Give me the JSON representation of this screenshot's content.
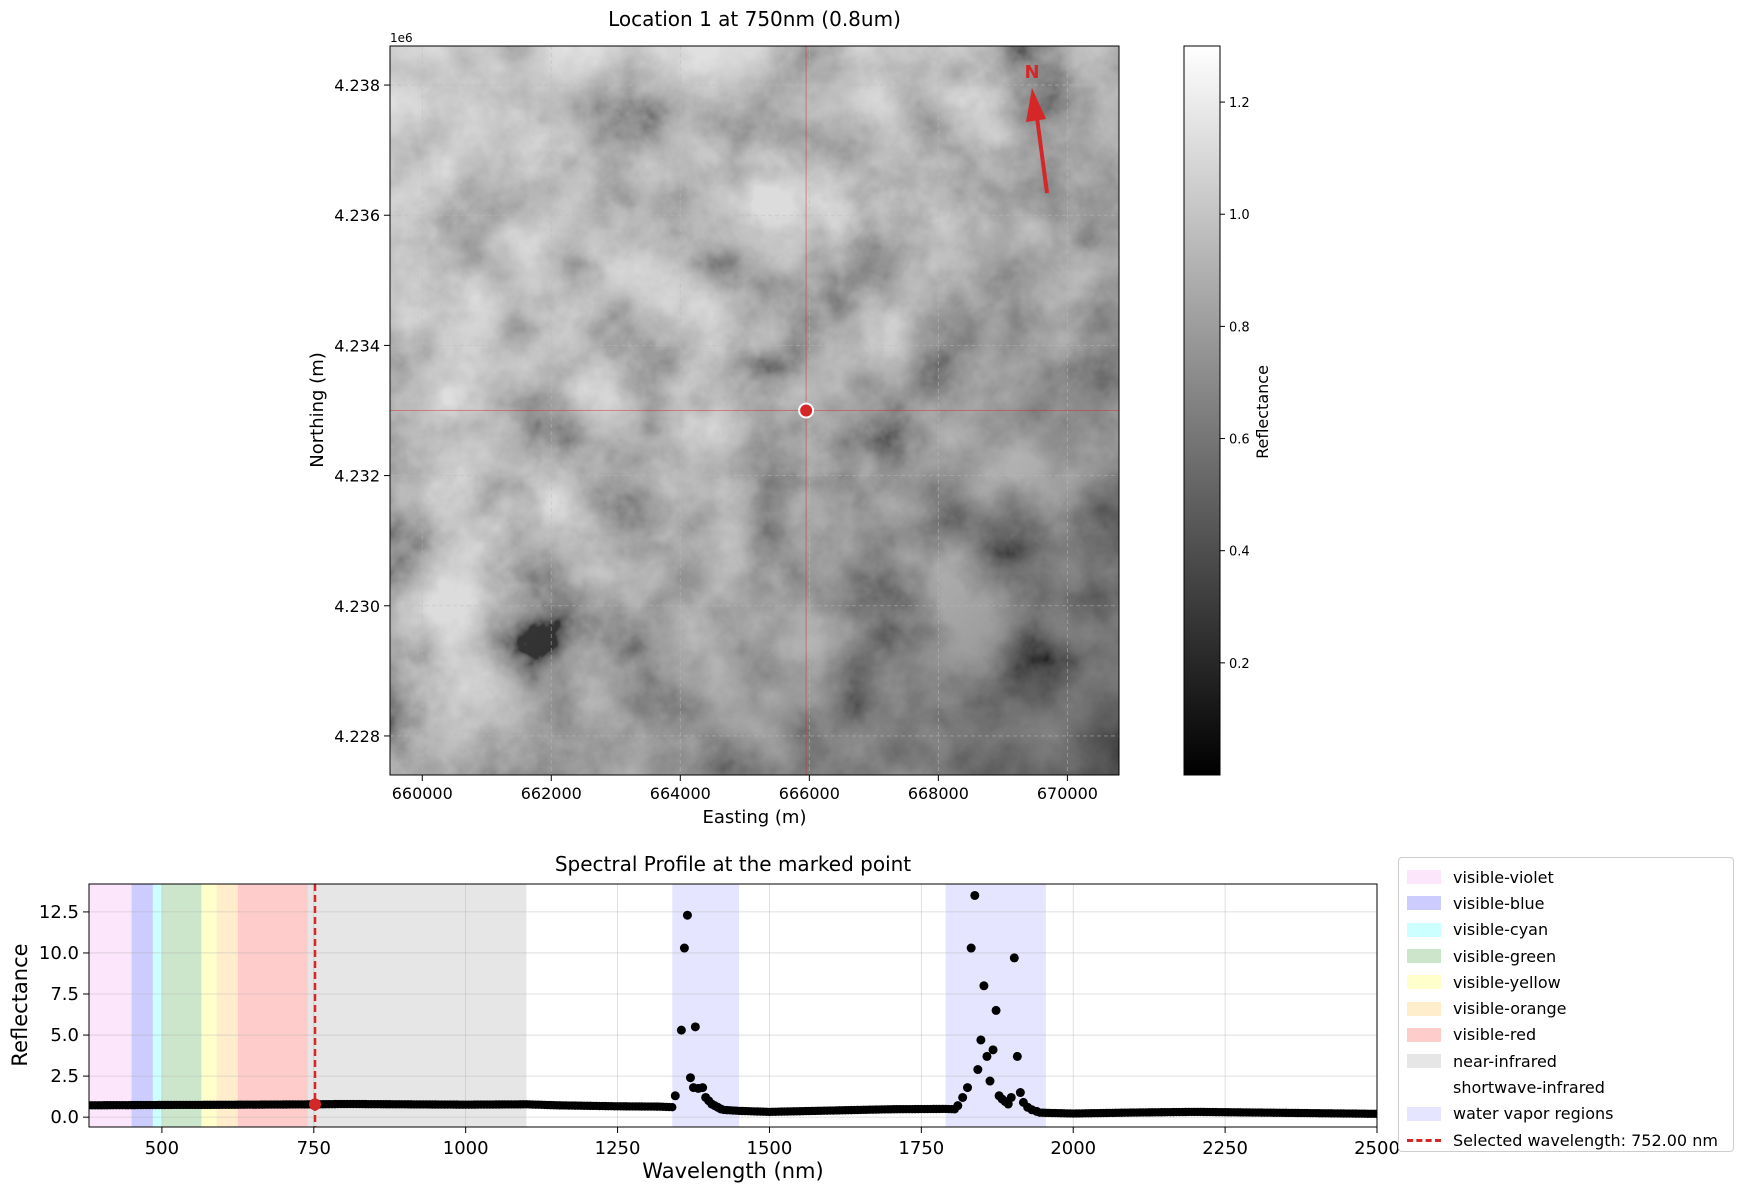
{
  "chart_data": [
    {
      "type": "heatmap",
      "title": "Location 1 at 750nm (0.8um)",
      "xlabel": "Easting (m)",
      "ylabel": "Northing (m)",
      "y_offset_label": "1e6",
      "xlim": [
        659500,
        670800
      ],
      "ylim": [
        4227400,
        4238600
      ],
      "xticks": [
        660000,
        662000,
        664000,
        666000,
        668000,
        670000
      ],
      "xtick_labels": [
        "660000",
        "662000",
        "664000",
        "666000",
        "668000",
        "670000"
      ],
      "yticks": [
        4228000,
        4230000,
        4232000,
        4234000,
        4236000,
        4238000
      ],
      "ytick_labels": [
        "4.228",
        "4.230",
        "4.232",
        "4.234",
        "4.236",
        "4.238"
      ],
      "grid": true,
      "colormap": "gray",
      "marked_point": {
        "x": 665950,
        "y": 4233000,
        "color": "#d62728"
      },
      "north_arrow": {
        "label": "N",
        "color": "#d62728"
      },
      "colorbar": {
        "label": "Reflectance",
        "range": [
          0.0,
          1.3
        ],
        "ticks": [
          0.2,
          0.4,
          0.6,
          0.8,
          1.0,
          1.2
        ],
        "tick_labels": [
          "0.2",
          "0.4",
          "0.6",
          "0.8",
          "1.0",
          "1.2"
        ]
      }
    },
    {
      "type": "scatter",
      "title": "Spectral Profile at the marked point",
      "xlabel": "Wavelength (nm)",
      "ylabel": "Reflectance",
      "xlim": [
        380,
        2500
      ],
      "ylim": [
        -0.6,
        14.2
      ],
      "xticks": [
        500,
        750,
        1000,
        1250,
        1500,
        1750,
        2000,
        2250,
        2500
      ],
      "xtick_labels": [
        "500",
        "750",
        "1000",
        "1250",
        "1500",
        "1750",
        "2000",
        "2250",
        "2500"
      ],
      "yticks": [
        0.0,
        2.5,
        5.0,
        7.5,
        10.0,
        12.5
      ],
      "ytick_labels": [
        "0.0",
        "2.5",
        "5.0",
        "7.5",
        "10.0",
        "12.5"
      ],
      "grid": true,
      "legend_placement": "outside right",
      "bands": [
        {
          "name": "visible-violet",
          "start": 380,
          "end": 450,
          "color": "#ee82ee",
          "alpha": 0.2
        },
        {
          "name": "visible-blue",
          "start": 450,
          "end": 485,
          "color": "#0000ff",
          "alpha": 0.2
        },
        {
          "name": "visible-cyan",
          "start": 485,
          "end": 500,
          "color": "#00ffff",
          "alpha": 0.2
        },
        {
          "name": "visible-green",
          "start": 500,
          "end": 565,
          "color": "#008000",
          "alpha": 0.2
        },
        {
          "name": "visible-yellow",
          "start": 565,
          "end": 590,
          "color": "#ffff00",
          "alpha": 0.2
        },
        {
          "name": "visible-orange",
          "start": 590,
          "end": 625,
          "color": "#ffa500",
          "alpha": 0.2
        },
        {
          "name": "visible-red",
          "start": 625,
          "end": 740,
          "color": "#ff0000",
          "alpha": 0.2
        },
        {
          "name": "near-infrared",
          "start": 740,
          "end": 1100,
          "color": "#808080",
          "alpha": 0.2
        },
        {
          "name": "shortwave-infrared",
          "start": 1100,
          "end": 2500,
          "color": "#ffffff",
          "alpha": 0.2
        },
        {
          "name": "water vapor regions",
          "start": 1340,
          "end": 1450,
          "color": "#0000ff",
          "alpha": 0.1
        },
        {
          "name": "water vapor regions",
          "start": 1790,
          "end": 1955,
          "color": "#0000ff",
          "alpha": 0.1
        }
      ],
      "selected_wavelength": {
        "value": 752,
        "label": "Selected wavelength: 752.00 nm",
        "color": "#d62728"
      },
      "selected_point": {
        "x": 752,
        "y": 0.78
      },
      "baseline": [
        [
          380,
          0.72
        ],
        [
          500,
          0.74
        ],
        [
          600,
          0.75
        ],
        [
          700,
          0.77
        ],
        [
          752,
          0.78
        ],
        [
          800,
          0.8
        ],
        [
          900,
          0.78
        ],
        [
          1000,
          0.76
        ],
        [
          1100,
          0.78
        ],
        [
          1150,
          0.72
        ],
        [
          1250,
          0.66
        ],
        [
          1320,
          0.64
        ],
        [
          1400,
          0.5
        ],
        [
          1450,
          0.38
        ],
        [
          1500,
          0.32
        ],
        [
          1600,
          0.4
        ],
        [
          1700,
          0.48
        ],
        [
          1790,
          0.5
        ],
        [
          1955,
          0.26
        ],
        [
          2000,
          0.22
        ],
        [
          2100,
          0.28
        ],
        [
          2200,
          0.32
        ],
        [
          2300,
          0.28
        ],
        [
          2400,
          0.24
        ],
        [
          2500,
          0.2
        ]
      ],
      "outliers": [
        [
          1345,
          1.3
        ],
        [
          1355,
          5.3
        ],
        [
          1360,
          10.3
        ],
        [
          1365,
          12.3
        ],
        [
          1370,
          2.4
        ],
        [
          1375,
          1.8
        ],
        [
          1378,
          5.5
        ],
        [
          1383,
          1.75
        ],
        [
          1390,
          1.8
        ],
        [
          1395,
          1.2
        ],
        [
          1400,
          1.0
        ],
        [
          1405,
          0.8
        ],
        [
          1410,
          0.7
        ],
        [
          1415,
          0.6
        ],
        [
          1420,
          0.5
        ],
        [
          1810,
          0.7
        ],
        [
          1818,
          1.2
        ],
        [
          1826,
          1.8
        ],
        [
          1832,
          10.3
        ],
        [
          1838,
          13.5
        ],
        [
          1843,
          2.9
        ],
        [
          1848,
          4.7
        ],
        [
          1853,
          8.0
        ],
        [
          1858,
          3.7
        ],
        [
          1863,
          2.2
        ],
        [
          1868,
          4.1
        ],
        [
          1873,
          6.5
        ],
        [
          1878,
          1.3
        ],
        [
          1883,
          1.1
        ],
        [
          1888,
          0.95
        ],
        [
          1893,
          0.8
        ],
        [
          1898,
          1.2
        ],
        [
          1903,
          9.7
        ],
        [
          1908,
          3.7
        ],
        [
          1913,
          1.5
        ],
        [
          1918,
          0.9
        ],
        [
          1925,
          0.6
        ],
        [
          1932,
          0.45
        ],
        [
          1940,
          0.35
        ]
      ]
    }
  ]
}
